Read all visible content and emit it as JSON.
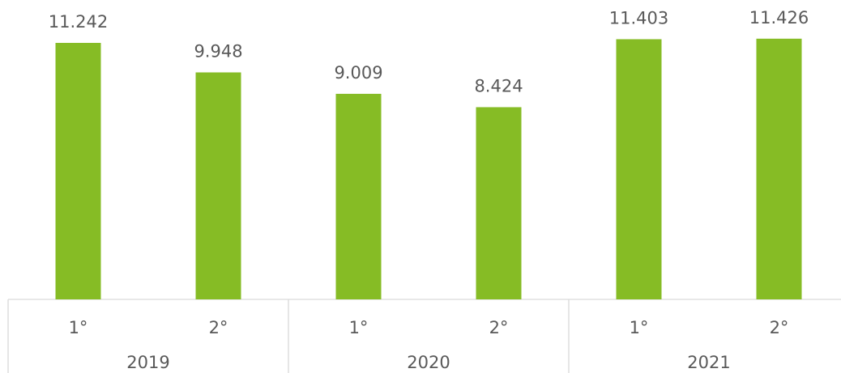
{
  "chart_data": {
    "type": "bar",
    "categories": [
      "1°",
      "2°",
      "1°",
      "2°",
      "1°",
      "2°"
    ],
    "groups": [
      "2019",
      "2020",
      "2021"
    ],
    "values": [
      11242,
      9948,
      9009,
      8424,
      11403,
      11426
    ],
    "value_labels": [
      "11.242",
      "9.948",
      "9.009",
      "8.424",
      "11.403",
      "11.426"
    ],
    "color": "#86bc25"
  }
}
